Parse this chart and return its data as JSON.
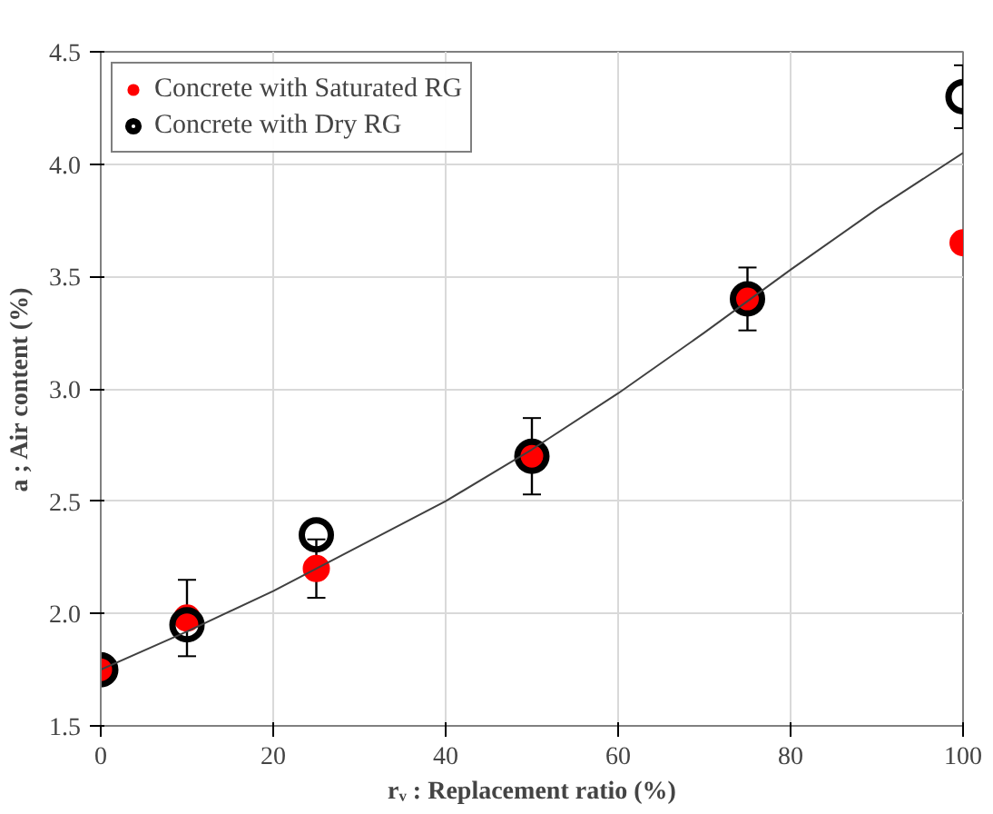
{
  "chart_data": {
    "type": "scatter",
    "xlabel": "rᵥ : Replacement ratio (%)",
    "ylabel": "a ; Air content (%)",
    "xlim": [
      0,
      100
    ],
    "xticks": [
      0,
      20,
      40,
      60,
      80,
      100
    ],
    "ylim": [
      1.5,
      4.5
    ],
    "yticks": [
      {
        "value": 1.5,
        "label": "1.5"
      },
      {
        "value": 2.0,
        "label": "2.0"
      },
      {
        "value": 2.5,
        "label": "2.5"
      },
      {
        "value": 3.0,
        "label": "3.0"
      },
      {
        "value": 3.5,
        "label": "3.5"
      },
      {
        "value": 4.0,
        "label": "4.0"
      },
      {
        "value": 4.5,
        "label": "4.5"
      }
    ],
    "grid": true,
    "legend": "top left",
    "series": [
      {
        "name": "Concrete with Saturated RG",
        "marker": "circle",
        "color": "#ff0000",
        "x": [
          0,
          10,
          25,
          50,
          75,
          100
        ],
        "values": [
          1.75,
          1.98,
          2.2,
          2.7,
          3.4,
          3.65
        ],
        "errors": [
          null,
          0.17,
          0.13,
          null,
          null,
          null
        ]
      },
      {
        "name": "Concrete with Dry RG",
        "marker": "circle",
        "color": "#000000",
        "x": [
          0,
          10,
          25,
          50,
          75,
          100
        ],
        "values": [
          1.75,
          1.95,
          2.35,
          2.7,
          3.4,
          4.3
        ],
        "errors": [
          null,
          null,
          null,
          0.17,
          0.14,
          0.14
        ]
      },
      {
        "type": "line",
        "color": "#404040",
        "x": [
          0,
          10,
          20,
          30,
          40,
          50,
          60,
          70,
          80,
          90,
          100
        ],
        "values": [
          1.75,
          1.92,
          2.1,
          2.3,
          2.5,
          2.73,
          2.98,
          3.25,
          3.53,
          3.8,
          4.05
        ]
      }
    ]
  }
}
